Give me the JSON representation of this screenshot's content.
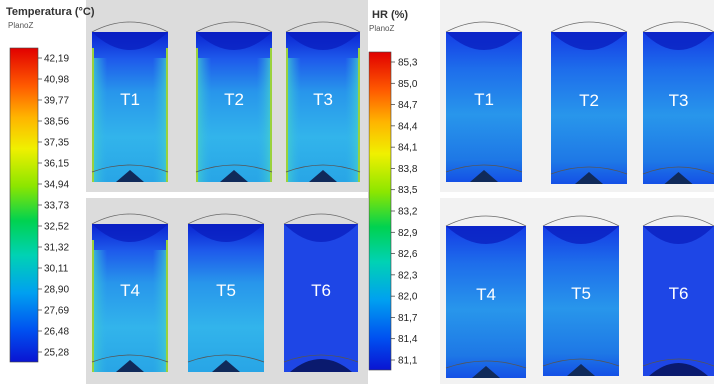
{
  "chart_data": [
    {
      "type": "heatmap",
      "title": "Temperatura (°C)",
      "subtitle": "PlanoZ",
      "colorbar_ticks": [
        "42,19",
        "40,98",
        "39,77",
        "38,56",
        "37,35",
        "36,15",
        "34,94",
        "33,73",
        "32,52",
        "31,32",
        "30,11",
        "28,90",
        "27,69",
        "26,48",
        "25,28"
      ],
      "range": [
        25.28,
        42.19
      ],
      "panels": [
        {
          "label": "T1"
        },
        {
          "label": "T2"
        },
        {
          "label": "T3"
        },
        {
          "label": "T4"
        },
        {
          "label": "T5"
        },
        {
          "label": "T6"
        }
      ]
    },
    {
      "type": "heatmap",
      "title": "HR (%)",
      "subtitle": "PlanoZ",
      "colorbar_ticks": [
        "85,3",
        "85,0",
        "84,7",
        "84,4",
        "84,1",
        "83,8",
        "83,5",
        "83,2",
        "82,9",
        "82,6",
        "82,3",
        "82,0",
        "81,7",
        "81,4",
        "81,1"
      ],
      "range": [
        81.1,
        85.3
      ],
      "panels": [
        {
          "label": "T1"
        },
        {
          "label": "T2"
        },
        {
          "label": "T3"
        },
        {
          "label": "T4"
        },
        {
          "label": "T5"
        },
        {
          "label": "T6"
        }
      ]
    }
  ],
  "colors": {
    "cold": "#1428e6",
    "mid": "#1ec8e6",
    "hot": "#e61414",
    "panel_bg": "#3264ff",
    "edge_green": "#9ad23c"
  }
}
